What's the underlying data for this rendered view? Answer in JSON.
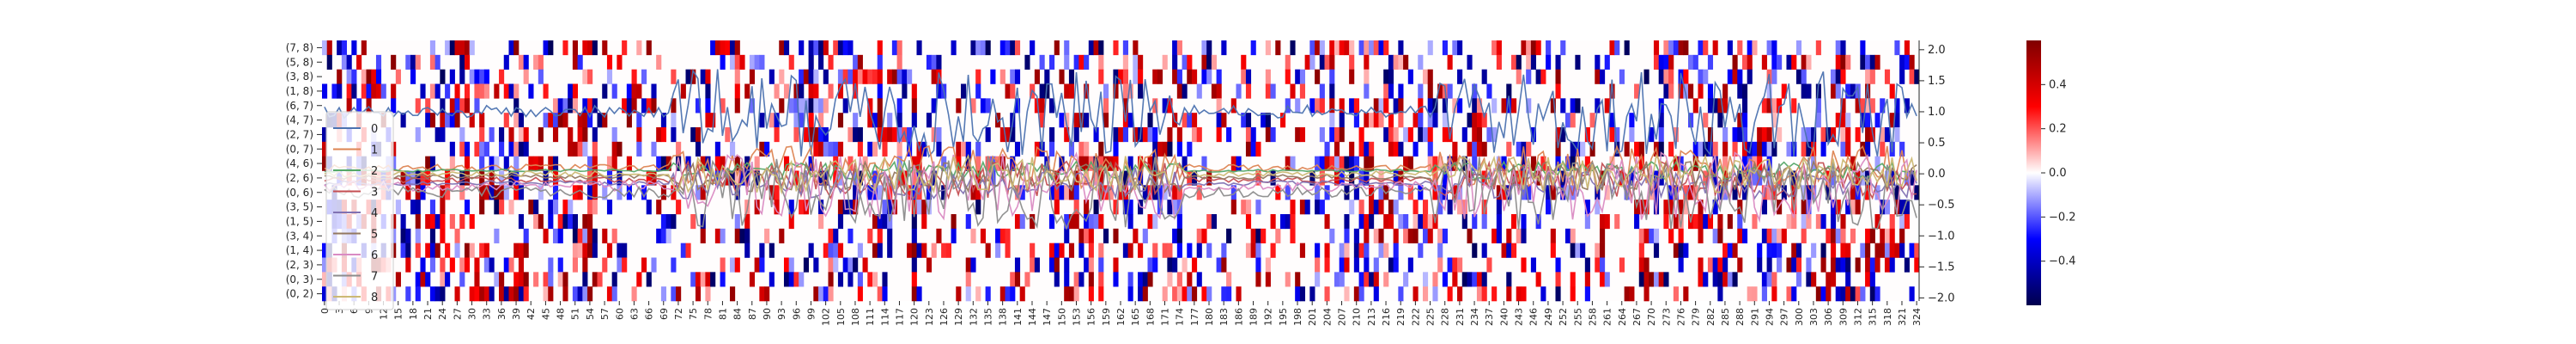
{
  "chart_data": {
    "type": "heatmap",
    "title": "",
    "xlabel": "",
    "ylabel": "",
    "heatmap": {
      "rows": [
        "(7, 8)",
        "(5, 8)",
        "(3, 8)",
        "(1, 8)",
        "(6, 7)",
        "(4, 7)",
        "(2, 7)",
        "(0, 7)",
        "(4, 6)",
        "(2, 6)",
        "(0, 6)",
        "(3, 5)",
        "(1, 5)",
        "(3, 4)",
        "(1, 4)",
        "(2, 3)",
        "(0, 3)",
        "(0, 2)"
      ],
      "columns_start": 0,
      "columns_end": 324,
      "column_tick_step": 3,
      "value_range": [
        -0.6,
        0.6
      ],
      "colormap": "seismic"
    },
    "colorbar": {
      "ticks": [
        0.4,
        0.2,
        0.0,
        -0.2,
        -0.4
      ],
      "tick_labels": [
        "0.4",
        "0.2",
        "0.0",
        "−0.2",
        "−0.4"
      ],
      "range": [
        -0.6,
        0.6
      ]
    },
    "line_overlay": {
      "y_axis": "right",
      "ylim": [
        -2.05,
        2.15
      ],
      "y_ticks": [
        2.0,
        1.5,
        1.0,
        0.5,
        0.0,
        -0.5,
        -1.0,
        -1.5,
        -2.0
      ],
      "y_tick_labels": [
        "2.0",
        "1.5",
        "1.0",
        "0.5",
        "0.0",
        "−0.5",
        "−1.0",
        "−1.5",
        "−2.0"
      ],
      "series": [
        {
          "name": "0",
          "color": "#4c72b0"
        },
        {
          "name": "1",
          "color": "#dd8452"
        },
        {
          "name": "2",
          "color": "#55a868"
        },
        {
          "name": "3",
          "color": "#c44e52"
        },
        {
          "name": "4",
          "color": "#8172b3"
        },
        {
          "name": "5",
          "color": "#937860"
        },
        {
          "name": "6",
          "color": "#da8bc3"
        },
        {
          "name": "7",
          "color": "#8c8c8c"
        },
        {
          "name": "8",
          "color": "#ccb974"
        }
      ]
    },
    "legend": {
      "placement": "left"
    },
    "grid": false
  }
}
